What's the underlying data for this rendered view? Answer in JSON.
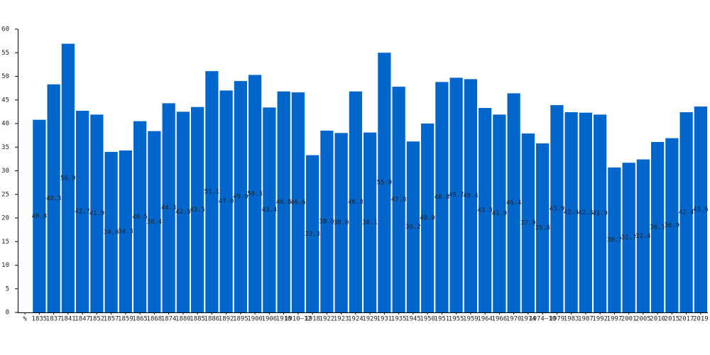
{
  "chart_data": {
    "type": "bar",
    "categories": [
      "%",
      "1835",
      "1837",
      "1841",
      "1847",
      "1852",
      "1857",
      "1859",
      "1865",
      "1868",
      "1874",
      "1880",
      "1885",
      "1886",
      "1892",
      "1895",
      "1900",
      "1906",
      "1910",
      "1910–12",
      "1918",
      "1922",
      "1923",
      "1924",
      "1929",
      "1931",
      "1935",
      "1945",
      "1950",
      "1951",
      "1955",
      "1959",
      "1964",
      "1966",
      "1970",
      "1974",
      "1974–10",
      "1979",
      "1983",
      "1987",
      "1992",
      "1997",
      "2001",
      "2005",
      "2010",
      "2015",
      "2017",
      "2019"
    ],
    "values": [
      null,
      40.8,
      48.3,
      56.9,
      42.7,
      41.9,
      34.0,
      34.3,
      40.5,
      38.4,
      44.3,
      42.5,
      43.5,
      51.1,
      47.0,
      49.0,
      50.3,
      43.4,
      46.8,
      46.6,
      33.3,
      38.5,
      38.0,
      46.8,
      38.1,
      55.0,
      47.8,
      36.2,
      40.0,
      48.8,
      49.7,
      49.4,
      43.3,
      41.9,
      46.4,
      37.9,
      35.8,
      43.9,
      42.4,
      42.3,
      41.9,
      30.7,
      31.7,
      32.4,
      36.1,
      36.9,
      42.4,
      43.6
    ],
    "value_labels": [
      null,
      "40.8",
      "48.3",
      "56.9",
      "42.7",
      "41.9",
      "34.0",
      "34.3",
      "40.5",
      "38.4",
      "44.3",
      "42.5",
      "43.5",
      "51.1",
      "47.0",
      "49.0",
      "50.3",
      "43.4",
      "46.8",
      "46.6",
      "33.3",
      "38.5",
      "38.0",
      "46.8",
      "38.1",
      "55.0",
      "47.8",
      "36.2",
      "40.0",
      "48.8",
      "49.7",
      "49.4",
      "43.3",
      "41.9",
      "46.4",
      "37.9",
      "35.8",
      "43.9",
      "42.4",
      "42.3",
      "41.9",
      "30.7",
      "31.7",
      "32.4",
      "36.1",
      "36.9",
      "42.4",
      "43.6"
    ],
    "color": "#0066cc",
    "ylim": [
      0,
      60
    ],
    "yticks": [
      0,
      5,
      10,
      15,
      20,
      25,
      30,
      35,
      40,
      45,
      50,
      55,
      60
    ],
    "grid": false
  }
}
